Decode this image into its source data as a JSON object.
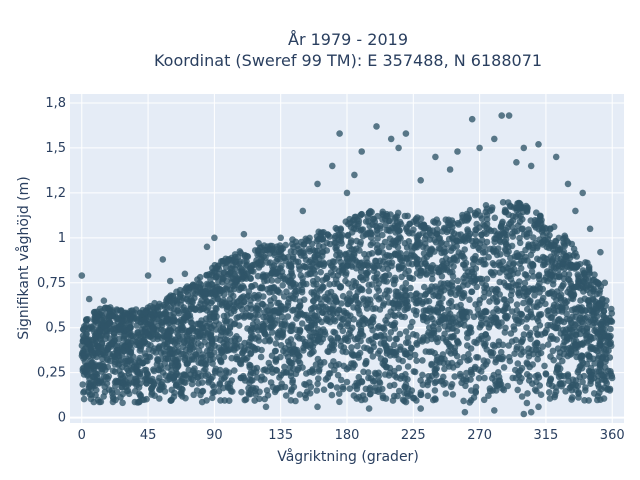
{
  "chart_data": {
    "type": "scatter",
    "title": "År 1979 - 2019",
    "subtitle": "Koordinat (Sweref 99 TM): E 357488, N 6188071",
    "xlabel": "Vågriktning (grader)",
    "ylabel": "Signifikant våghöjd (m)",
    "xlim": [
      -8,
      368
    ],
    "ylim": [
      -0.03,
      1.8
    ],
    "x_ticks": [
      0,
      45,
      90,
      135,
      180,
      225,
      270,
      315,
      360
    ],
    "x_tick_labels": [
      "0",
      "45",
      "90",
      "135",
      "180",
      "225",
      "270",
      "315",
      "360"
    ],
    "y_ticks": [
      0,
      0.25,
      0.5,
      0.75,
      1,
      1.25,
      1.5,
      1.75
    ],
    "y_tick_labels": [
      "0",
      "0,25",
      "0,5",
      "0,75",
      "1",
      "1,2",
      "1,5",
      "1,8"
    ],
    "grid": true,
    "marker_color": "#2f5468",
    "plot_background": "#e5ecf6",
    "envelope": {
      "x": [
        0,
        10,
        20,
        30,
        45,
        60,
        75,
        90,
        105,
        120,
        135,
        150,
        165,
        180,
        195,
        210,
        225,
        240,
        255,
        270,
        285,
        300,
        315,
        330,
        345,
        360
      ],
      "y_max": [
        0.55,
        0.6,
        0.62,
        0.6,
        0.62,
        0.68,
        0.75,
        0.85,
        0.92,
        0.95,
        0.98,
        1.0,
        1.05,
        1.1,
        1.15,
        1.15,
        1.12,
        1.1,
        1.12,
        1.18,
        1.2,
        1.2,
        1.1,
        1.0,
        0.85,
        0.6
      ],
      "y_min": [
        0.08,
        0.08,
        0.08,
        0.08,
        0.08,
        0.08,
        0.08,
        0.08,
        0.08,
        0.08,
        0.08,
        0.08,
        0.08,
        0.08,
        0.08,
        0.08,
        0.08,
        0.08,
        0.08,
        0.08,
        0.08,
        0.08,
        0.08,
        0.08,
        0.08,
        0.1
      ]
    },
    "outliers": [
      {
        "x": 285,
        "y": 1.68
      },
      {
        "x": 290,
        "y": 1.68
      },
      {
        "x": 265,
        "y": 1.66
      },
      {
        "x": 200,
        "y": 1.62
      },
      {
        "x": 175,
        "y": 1.58
      },
      {
        "x": 220,
        "y": 1.58
      },
      {
        "x": 210,
        "y": 1.55
      },
      {
        "x": 190,
        "y": 1.48
      },
      {
        "x": 170,
        "y": 1.4
      },
      {
        "x": 215,
        "y": 1.5
      },
      {
        "x": 240,
        "y": 1.45
      },
      {
        "x": 255,
        "y": 1.48
      },
      {
        "x": 280,
        "y": 1.55
      },
      {
        "x": 300,
        "y": 1.5
      },
      {
        "x": 310,
        "y": 1.52
      },
      {
        "x": 322,
        "y": 1.45
      },
      {
        "x": 330,
        "y": 1.3
      },
      {
        "x": 340,
        "y": 1.25
      },
      {
        "x": 345,
        "y": 1.05
      },
      {
        "x": 352,
        "y": 0.92
      },
      {
        "x": 355,
        "y": 0.75
      },
      {
        "x": 0,
        "y": 0.79
      },
      {
        "x": 5,
        "y": 0.66
      },
      {
        "x": 15,
        "y": 0.65
      },
      {
        "x": 45,
        "y": 0.79
      },
      {
        "x": 55,
        "y": 0.88
      },
      {
        "x": 60,
        "y": 0.76
      },
      {
        "x": 70,
        "y": 0.8
      },
      {
        "x": 85,
        "y": 0.95
      },
      {
        "x": 90,
        "y": 1.0
      },
      {
        "x": 110,
        "y": 1.02
      },
      {
        "x": 120,
        "y": 0.97
      },
      {
        "x": 135,
        "y": 1.0
      },
      {
        "x": 150,
        "y": 1.15
      },
      {
        "x": 160,
        "y": 1.3
      },
      {
        "x": 180,
        "y": 1.25
      },
      {
        "x": 185,
        "y": 1.35
      },
      {
        "x": 230,
        "y": 1.32
      },
      {
        "x": 250,
        "y": 1.38
      },
      {
        "x": 270,
        "y": 1.5
      },
      {
        "x": 295,
        "y": 1.42
      },
      {
        "x": 305,
        "y": 1.4
      },
      {
        "x": 335,
        "y": 1.15
      },
      {
        "x": 300,
        "y": 0.02
      },
      {
        "x": 305,
        "y": 0.03
      },
      {
        "x": 260,
        "y": 0.03
      },
      {
        "x": 280,
        "y": 0.04
      },
      {
        "x": 230,
        "y": 0.05
      },
      {
        "x": 195,
        "y": 0.05
      },
      {
        "x": 160,
        "y": 0.06
      },
      {
        "x": 125,
        "y": 0.06
      },
      {
        "x": 310,
        "y": 0.06
      }
    ]
  }
}
